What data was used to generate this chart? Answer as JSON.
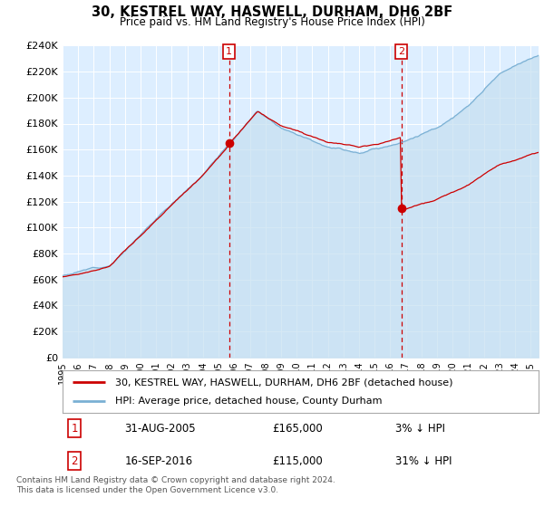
{
  "title": "30, KESTREL WAY, HASWELL, DURHAM, DH6 2BF",
  "subtitle": "Price paid vs. HM Land Registry's House Price Index (HPI)",
  "ylim": [
    0,
    240000
  ],
  "yticks": [
    0,
    20000,
    40000,
    60000,
    80000,
    100000,
    120000,
    140000,
    160000,
    180000,
    200000,
    220000,
    240000
  ],
  "ytick_labels": [
    "£0",
    "£20K",
    "£40K",
    "£60K",
    "£80K",
    "£100K",
    "£120K",
    "£140K",
    "£160K",
    "£180K",
    "£200K",
    "£220K",
    "£240K"
  ],
  "xlim_start": 1995.0,
  "xlim_end": 2025.5,
  "sale1_x": 2005.667,
  "sale1_y": 165000,
  "sale2_x": 2016.708,
  "sale2_y": 115000,
  "red_color": "#cc0000",
  "blue_color": "#7ab0d4",
  "blue_fill": "#c5dff0",
  "background_color": "#ddeeff",
  "plot_bg": "#ffffff",
  "legend_entry1": "30, KESTREL WAY, HASWELL, DURHAM, DH6 2BF (detached house)",
  "legend_entry2": "HPI: Average price, detached house, County Durham",
  "note1_date": "31-AUG-2005",
  "note1_price": "£165,000",
  "note1_hpi": "3% ↓ HPI",
  "note2_date": "16-SEP-2016",
  "note2_price": "£115,000",
  "note2_hpi": "31% ↓ HPI",
  "footnote": "Contains HM Land Registry data © Crown copyright and database right 2024.\nThis data is licensed under the Open Government Licence v3.0."
}
